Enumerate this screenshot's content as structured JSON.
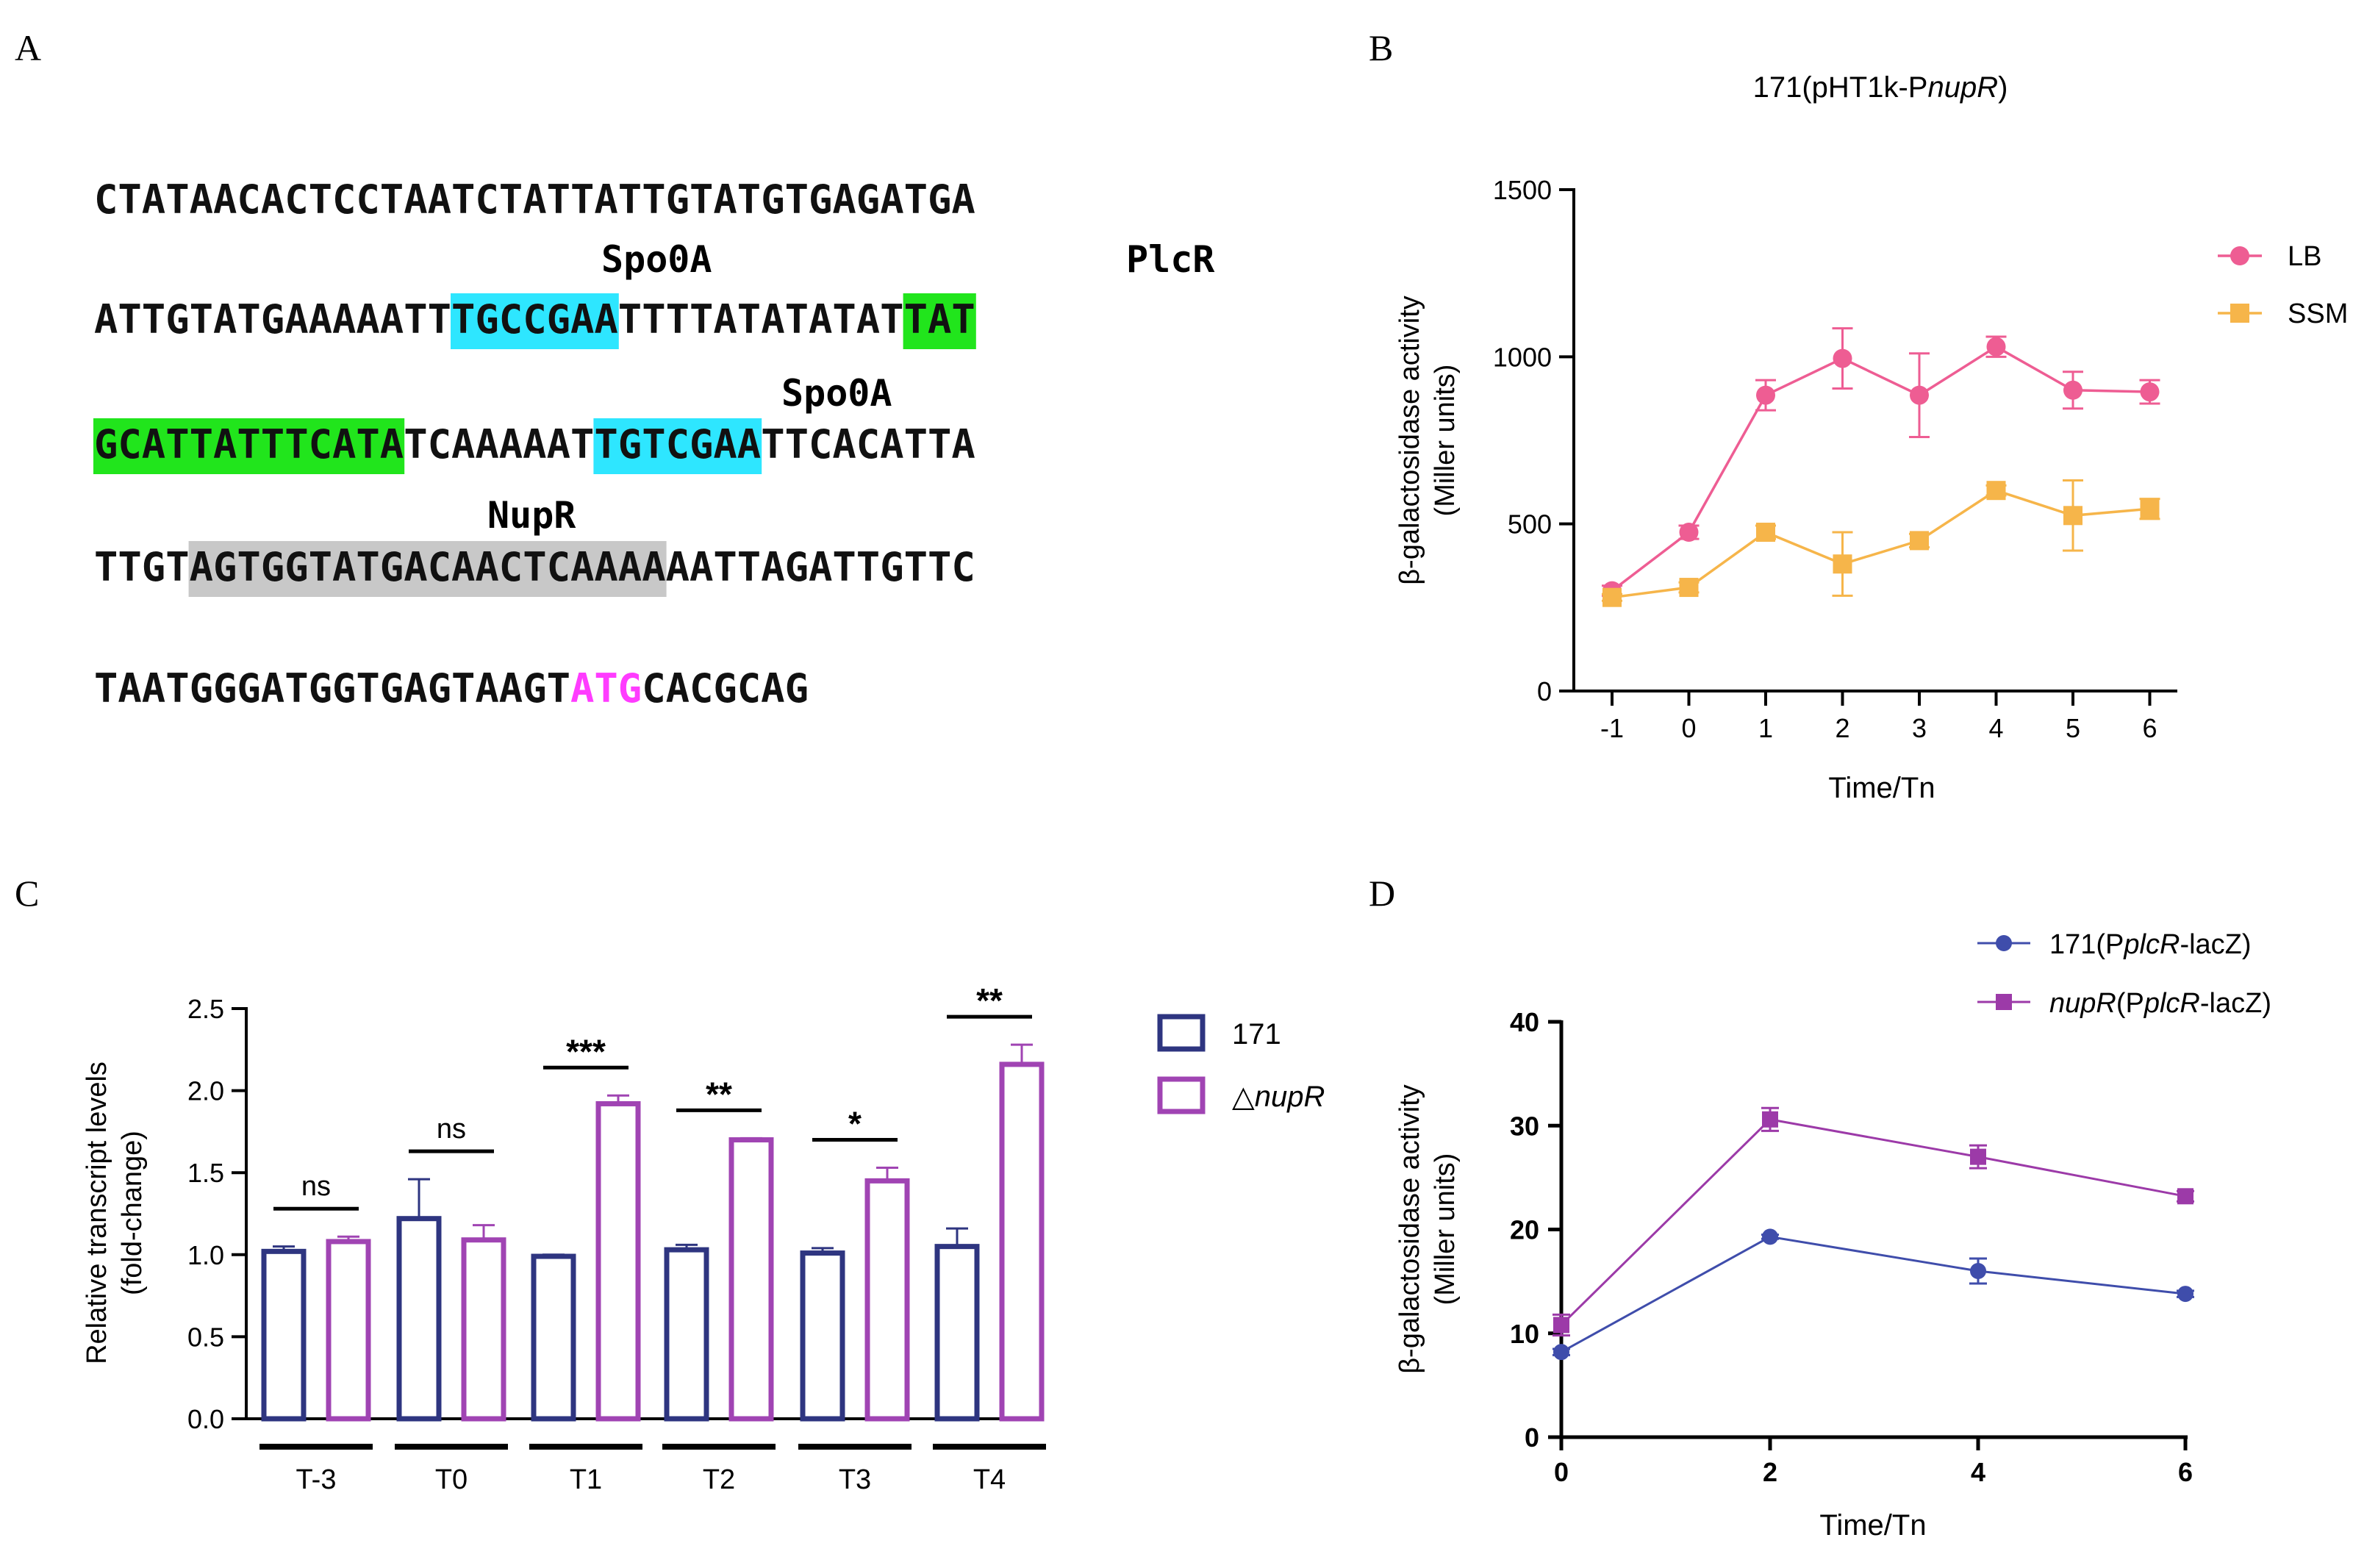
{
  "panels": {
    "A": {
      "label": "A",
      "motif_labels": {
        "spo0a_1": "Spo0A",
        "plcr": "PlcR",
        "spo0a_2": "Spo0A",
        "nupr": "NupR"
      },
      "lines": [
        [
          {
            "t": "CTATAACACTCCTAATCTATTATTGTATGTGAGATGA",
            "hl": null
          }
        ],
        [
          {
            "t": "ATTGTATGAAAAATT",
            "hl": null
          },
          {
            "t": "TGCCGAA",
            "hl": "cyan"
          },
          {
            "t": "TTTTATATATAT",
            "hl": null
          },
          {
            "t": "TAT",
            "hl": "green"
          }
        ],
        [
          {
            "t": "GCATTATTTCATA",
            "hl": "green"
          },
          {
            "t": "TCAAAAAT",
            "hl": null
          },
          {
            "t": "TGTCGAA",
            "hl": "cyan"
          },
          {
            "t": "TTCACATTA",
            "hl": null
          }
        ],
        [
          {
            "t": "TTGT",
            "hl": null
          },
          {
            "t": "AGTGGTATGACAACTCAAAA",
            "hl": "gray"
          },
          {
            "t": "AATTAGATTGTTC",
            "hl": null
          }
        ],
        [
          {
            "t": "TAATGGGATGGTGAGTAAGT",
            "hl": null
          },
          {
            "t": "ATG",
            "hl": "magenta"
          },
          {
            "t": "CACGCAG",
            "hl": null
          }
        ]
      ]
    },
    "B": {
      "label": "B"
    },
    "C": {
      "label": "C"
    },
    "D": {
      "label": "D"
    }
  },
  "colors": {
    "cyan": "#2ee6ff",
    "green": "#21e51c",
    "gray": "#c8c8c8",
    "magenta": "#ff3cff",
    "lb": "#ee5d93",
    "ssm": "#f6b54a",
    "wt": "#2e3580",
    "mut": "#a044b3",
    "d_wt": "#3f4dab",
    "d_mut": "#9c3aa8"
  },
  "chart_data": [
    {
      "panel": "B",
      "type": "line",
      "title": "171(pHT1k-PnupR)",
      "title_parts": {
        "prefix": "171(pHT1k-P",
        "italic": "nupR",
        "suffix": ")"
      },
      "xlabel": "Time/Tn",
      "ylabel": [
        "β-galactosidase activity",
        "(Miller units)"
      ],
      "x": [
        -1,
        0,
        1,
        2,
        3,
        4,
        5,
        6
      ],
      "x_ticks": [
        "-1",
        "0",
        "1",
        "2",
        "3",
        "4",
        "5",
        "6"
      ],
      "ylim": [
        0,
        1500
      ],
      "y_ticks": [
        0,
        500,
        1000,
        1500
      ],
      "legend_position": "top-right",
      "series": [
        {
          "name": "LB",
          "marker": "circle",
          "values": [
            300,
            475,
            885,
            995,
            885,
            1030,
            900,
            895
          ],
          "errors": [
            15,
            20,
            45,
            90,
            125,
            30,
            55,
            35
          ]
        },
        {
          "name": "SSM",
          "marker": "square",
          "values": [
            280,
            310,
            475,
            380,
            450,
            600,
            525,
            545
          ],
          "errors": [
            10,
            15,
            20,
            95,
            20,
            15,
            105,
            30
          ]
        }
      ]
    },
    {
      "panel": "C",
      "type": "bar",
      "categories": [
        "T-3",
        "T0",
        "T1",
        "T2",
        "T3",
        "T4"
      ],
      "ylabel": [
        "Relative transcript levels",
        "(fold-change)"
      ],
      "xlabel": "",
      "ylim": [
        0,
        2.5
      ],
      "y_ticks": [
        "0.0",
        "0.5",
        "1.0",
        "1.5",
        "2.0",
        "2.5"
      ],
      "legend_position": "right",
      "series": [
        {
          "name": "171",
          "values": [
            1.02,
            1.22,
            0.99,
            1.03,
            1.01,
            1.05
          ],
          "errors": [
            0.03,
            0.24,
            0.01,
            0.03,
            0.03,
            0.11
          ]
        },
        {
          "name": "△",
          "name_italic": "nupR",
          "values": [
            1.08,
            1.09,
            1.92,
            1.7,
            1.45,
            2.16
          ],
          "errors": [
            0.03,
            0.09,
            0.05,
            0.01,
            0.08,
            0.12
          ]
        }
      ],
      "significance": [
        "ns",
        "ns",
        "***",
        "**",
        "*",
        "**"
      ]
    },
    {
      "panel": "D",
      "type": "line",
      "xlabel": "Time/Tn",
      "ylabel": [
        "β-galactosidase activity",
        "(Miller units)"
      ],
      "x": [
        0,
        2,
        4,
        6
      ],
      "x_ticks": [
        "0",
        "2",
        "4",
        "6"
      ],
      "ylim": [
        0,
        40
      ],
      "y_ticks": [
        "0",
        "10",
        "20",
        "30",
        "40"
      ],
      "legend_position": "top-right",
      "series": [
        {
          "name": "171(PplcR-lacZ)",
          "parts": {
            "prefix": "171(P",
            "italic": "plcR",
            "suffix": "-lacZ)"
          },
          "marker": "circle",
          "values": [
            8.2,
            19.3,
            16.0,
            13.8
          ],
          "errors": [
            0.3,
            0.2,
            1.2,
            0.3
          ]
        },
        {
          "name": "nupR(PplcR-lacZ)",
          "parts": {
            "italic_lead": "nupR",
            "prefix": "(P",
            "italic": "plcR",
            "suffix": "-lacZ)"
          },
          "marker": "square",
          "values": [
            10.8,
            30.6,
            27.0,
            23.2
          ],
          "errors": [
            1.0,
            1.1,
            1.1,
            0.5
          ]
        }
      ]
    }
  ]
}
